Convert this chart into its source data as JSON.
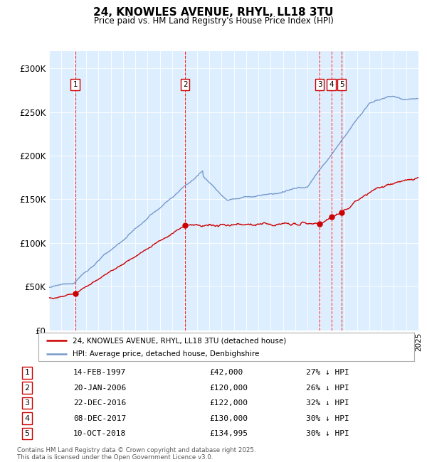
{
  "title": "24, KNOWLES AVENUE, RHYL, LL18 3TU",
  "subtitle": "Price paid vs. HM Land Registry's House Price Index (HPI)",
  "background_color": "#ffffff",
  "plot_bg_color": "#ddeeff",
  "hpi_color": "#7799cc",
  "paid_color": "#cc0000",
  "ylim": [
    0,
    320000
  ],
  "yticks": [
    0,
    50000,
    100000,
    150000,
    200000,
    250000,
    300000
  ],
  "ytick_labels": [
    "£0",
    "£50K",
    "£100K",
    "£150K",
    "£200K",
    "£250K",
    "£300K"
  ],
  "xstart": 1995,
  "xend": 2025,
  "transactions": [
    {
      "num": 1,
      "date_str": "14-FEB-1997",
      "year": 1997.12,
      "price": 42000,
      "pct": "27%"
    },
    {
      "num": 2,
      "date_str": "20-JAN-2006",
      "year": 2006.05,
      "price": 120000,
      "pct": "26%"
    },
    {
      "num": 3,
      "date_str": "22-DEC-2016",
      "year": 2016.97,
      "price": 122000,
      "pct": "32%"
    },
    {
      "num": 4,
      "date_str": "08-DEC-2017",
      "year": 2017.93,
      "price": 130000,
      "pct": "30%"
    },
    {
      "num": 5,
      "date_str": "10-OCT-2018",
      "year": 2018.77,
      "price": 134995,
      "pct": "30%"
    }
  ],
  "legend_label_red": "24, KNOWLES AVENUE, RHYL, LL18 3TU (detached house)",
  "legend_label_blue": "HPI: Average price, detached house, Denbighshire",
  "footer": "Contains HM Land Registry data © Crown copyright and database right 2025.\nThis data is licensed under the Open Government Licence v3.0."
}
